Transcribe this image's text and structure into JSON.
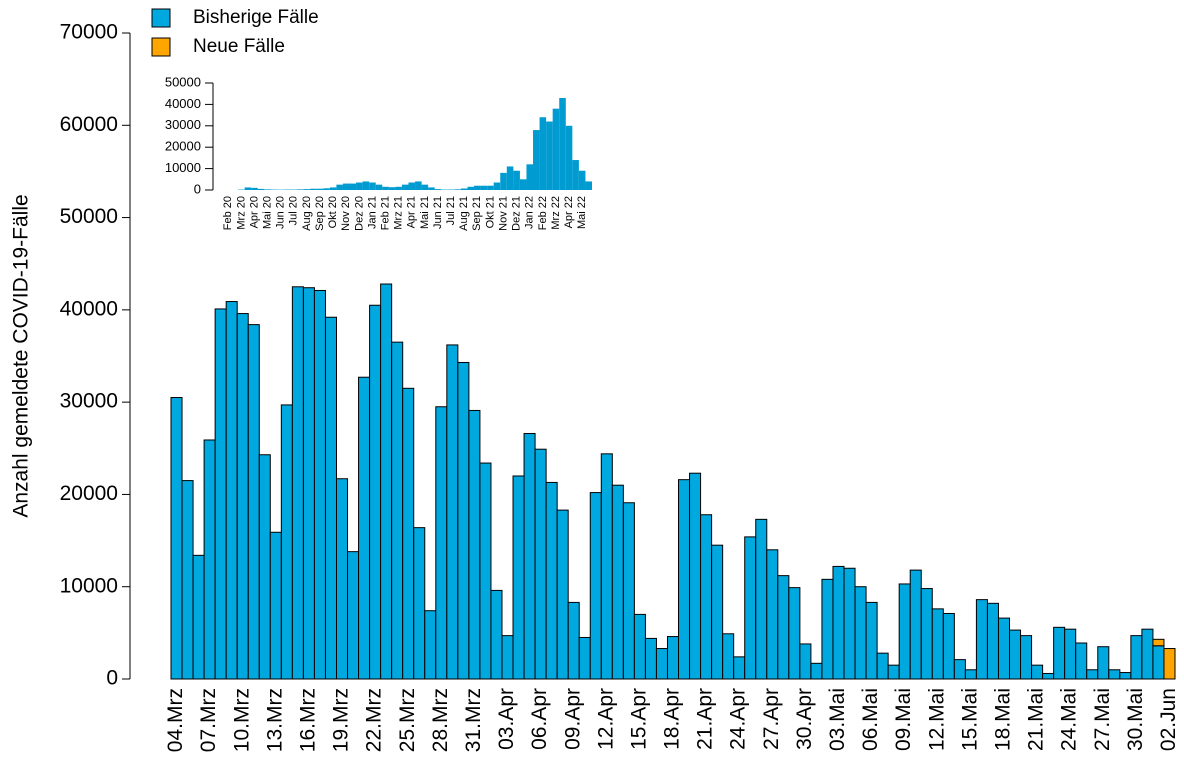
{
  "chart_data": [
    {
      "type": "bar",
      "stacked": true,
      "ylabel": "Anzahl gemeldete COVID-19-Fälle",
      "categories": [
        "04.Mrz",
        null,
        null,
        "07.Mrz",
        null,
        null,
        "10.Mrz",
        null,
        null,
        "13.Mrz",
        null,
        null,
        "16.Mrz",
        null,
        null,
        "19.Mrz",
        null,
        null,
        "22.Mrz",
        null,
        null,
        "25.Mrz",
        null,
        null,
        "28.Mrz",
        null,
        null,
        "31.Mrz",
        null,
        null,
        "03.Apr",
        null,
        null,
        "06.Apr",
        null,
        null,
        "09.Apr",
        null,
        null,
        "12.Apr",
        null,
        null,
        "15.Apr",
        null,
        null,
        "18.Apr",
        null,
        null,
        "21.Apr",
        null,
        null,
        "24.Apr",
        null,
        null,
        "27.Apr",
        null,
        null,
        "30.Apr",
        null,
        null,
        "03.Mai",
        null,
        null,
        "06.Mai",
        null,
        null,
        "09.Mai",
        null,
        null,
        "12.Mai",
        null,
        null,
        "15.Mai",
        null,
        null,
        "18.Mai",
        null,
        null,
        "21.Mai",
        null,
        null,
        "24.Mai",
        null,
        null,
        "27.Mai",
        null,
        null,
        "30.Mai",
        null,
        null,
        "02.Jun"
      ],
      "series": [
        {
          "name": "Bisherige Fälle",
          "color": "#00A8E0",
          "values": [
            30500,
            21500,
            13400,
            25900,
            40100,
            40900,
            39600,
            38400,
            24300,
            15900,
            29700,
            42500,
            42400,
            42100,
            39200,
            21700,
            13800,
            32700,
            40500,
            42800,
            36500,
            31500,
            16400,
            7400,
            29500,
            36200,
            34300,
            29100,
            23400,
            9600,
            4700,
            22000,
            26600,
            24900,
            21300,
            18300,
            8300,
            4500,
            20200,
            24400,
            21000,
            19100,
            7000,
            4400,
            3300,
            4600,
            21600,
            22300,
            17800,
            14500,
            4900,
            2400,
            15400,
            17300,
            14000,
            11200,
            9900,
            3800,
            1700,
            10800,
            12200,
            12000,
            10000,
            8300,
            2800,
            1500,
            10300,
            11800,
            9800,
            7600,
            7100,
            2100,
            1000,
            8600,
            8200,
            6600,
            5300,
            4700,
            1500,
            600,
            5600,
            5400,
            3900,
            1000,
            3500,
            1000,
            700,
            4700,
            5400,
            3600,
            0
          ]
        },
        {
          "name": "Neue Fälle",
          "color": "#FFA500",
          "values": [
            0,
            0,
            0,
            0,
            0,
            0,
            0,
            0,
            0,
            0,
            0,
            0,
            0,
            0,
            0,
            0,
            0,
            0,
            0,
            0,
            0,
            0,
            0,
            0,
            0,
            0,
            0,
            0,
            0,
            0,
            0,
            0,
            0,
            0,
            0,
            0,
            0,
            0,
            0,
            0,
            0,
            0,
            0,
            0,
            0,
            0,
            0,
            0,
            0,
            0,
            0,
            0,
            0,
            0,
            0,
            0,
            0,
            0,
            0,
            0,
            0,
            0,
            0,
            0,
            0,
            0,
            0,
            0,
            0,
            0,
            0,
            0,
            0,
            0,
            0,
            0,
            0,
            0,
            0,
            0,
            0,
            0,
            0,
            0,
            0,
            0,
            0,
            0,
            0,
            700,
            3300
          ]
        }
      ],
      "ylim": [
        0,
        70000
      ],
      "yticks": [
        0,
        10000,
        20000,
        30000,
        40000,
        50000,
        60000,
        70000
      ]
    },
    {
      "type": "bar",
      "color": "#009BD0",
      "categories": [
        "Feb 20",
        null,
        "Mrz 20",
        null,
        "Apr 20",
        null,
        "Mai 20",
        null,
        "Jun 20",
        null,
        "Jul 20",
        null,
        "Aug 20",
        null,
        "Sep 20",
        null,
        "Okt 20",
        null,
        "Nov 20",
        null,
        "Dez 20",
        null,
        "Jan 21",
        null,
        "Feb 21",
        null,
        "Mrz 21",
        null,
        "Apr 21",
        null,
        "Mai 21",
        null,
        "Jun 21",
        null,
        "Jul 21",
        null,
        "Aug 21",
        null,
        "Sep 21",
        null,
        "Okt 21",
        null,
        "Nov 21",
        null,
        "Dez 21",
        null,
        "Jan 22",
        null,
        "Feb 22",
        null,
        "Mrz 22",
        null,
        "Apr 22",
        null,
        "Mai 22",
        null
      ],
      "values": [
        0,
        0,
        200,
        1200,
        1000,
        500,
        300,
        200,
        150,
        200,
        200,
        300,
        400,
        600,
        600,
        800,
        1200,
        2500,
        3000,
        3000,
        3500,
        4000,
        3500,
        2500,
        1500,
        1300,
        1500,
        2500,
        3500,
        4000,
        2500,
        1200,
        400,
        200,
        200,
        300,
        700,
        1500,
        2000,
        2000,
        2000,
        3500,
        8000,
        11000,
        9000,
        5000,
        12000,
        28000,
        34000,
        32000,
        38000,
        43000,
        30000,
        14000,
        9000,
        4000
      ],
      "ylim": [
        0,
        50000
      ],
      "yticks": [
        0,
        10000,
        20000,
        30000,
        40000,
        50000
      ]
    }
  ]
}
